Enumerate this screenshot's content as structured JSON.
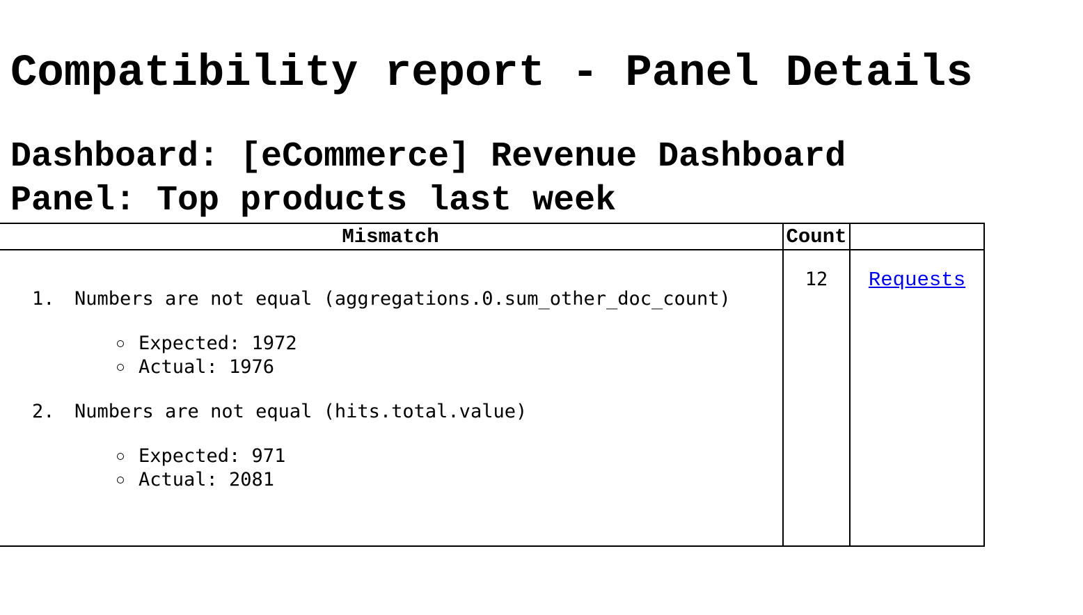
{
  "title": "Compatibility report - Panel Details",
  "dashboard": "Dashboard: [eCommerce] Revenue Dashboard",
  "panel": "Panel: Top products last week",
  "table": {
    "headers": [
      "Mismatch",
      "Count",
      ""
    ],
    "rows": [
      {
        "mismatches": [
          {
            "num": "1.",
            "text": "Numbers are not equal (aggregations.0.sum_other_doc_count)",
            "details": [
              "Expected: 1972",
              "Actual: 1976"
            ]
          },
          {
            "num": "2.",
            "text": "Numbers are not equal (hits.total.value)",
            "details": [
              "Expected: 971",
              "Actual: 2081"
            ]
          }
        ],
        "count": "12",
        "link": "Requests"
      }
    ]
  },
  "colors": {
    "link": "#0000ee"
  }
}
